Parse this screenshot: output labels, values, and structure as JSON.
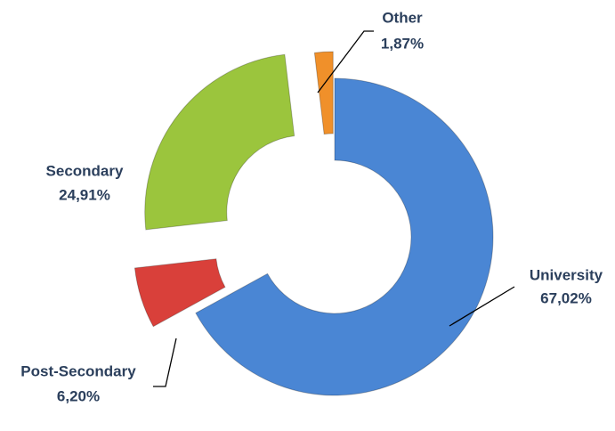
{
  "chart_data": {
    "type": "donut",
    "categories": [
      "University",
      "Post-Secondary",
      "Secondary",
      "Other"
    ],
    "values": [
      67.02,
      6.2,
      24.91,
      1.87
    ],
    "value_labels": [
      "67,02%",
      "6,20%",
      "24,91%",
      "1,87%"
    ],
    "colors": [
      "#4a86d4",
      "#d9403a",
      "#9bc53d",
      "#f0902a"
    ]
  }
}
